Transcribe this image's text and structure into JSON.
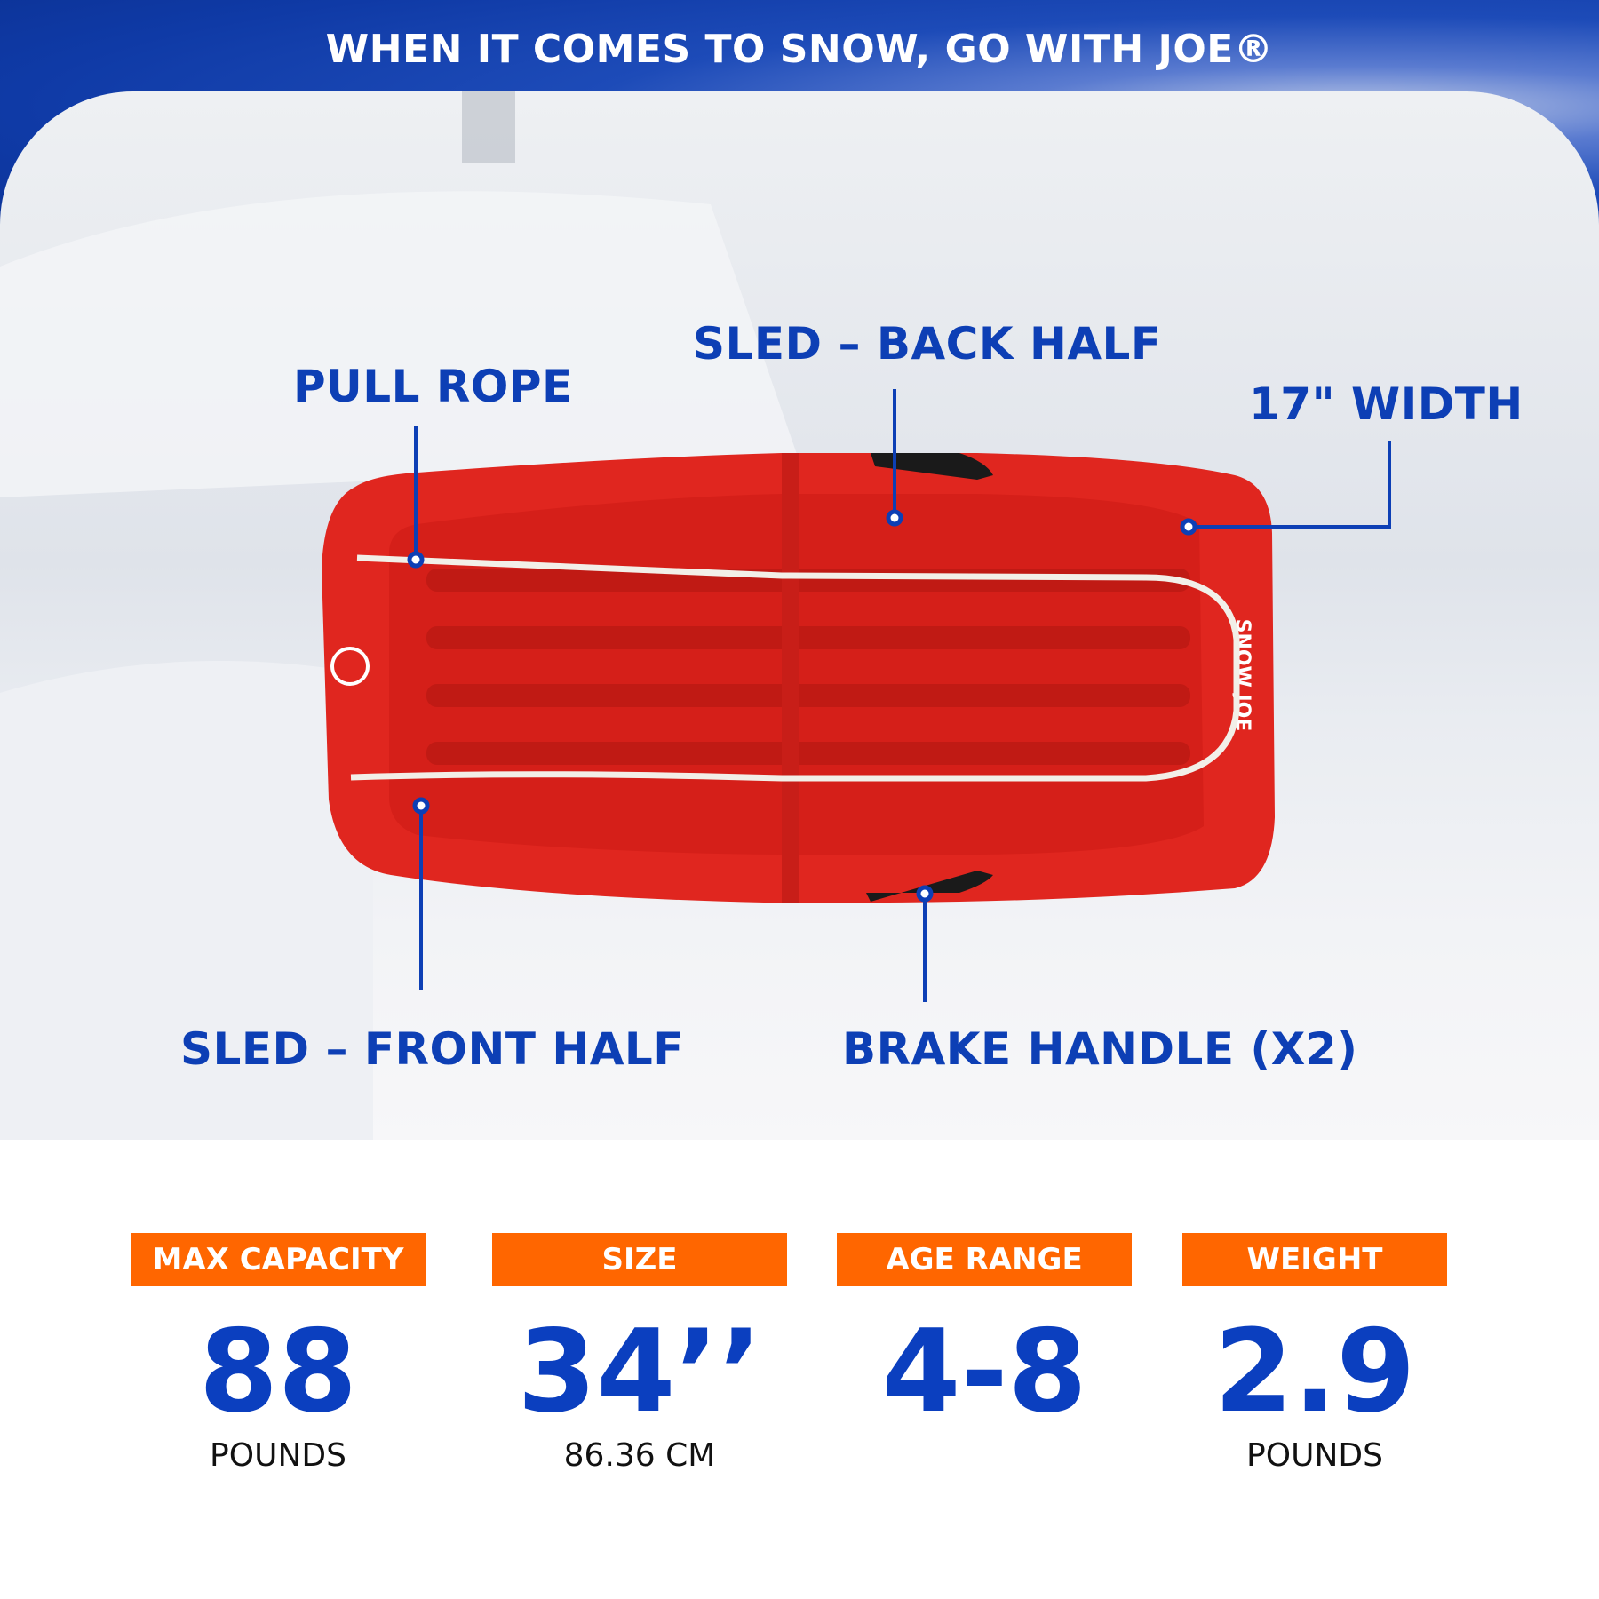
{
  "header": {
    "tagline": "WHEN IT COMES TO SNOW, GO WITH JOE®"
  },
  "callouts": {
    "pull_rope": "PULL ROPE",
    "back_half": "SLED – BACK HALF",
    "width": "17\" WIDTH",
    "front_half": "SLED – FRONT HALF",
    "brake_handle": "BRAKE HANDLE (X2)"
  },
  "sled": {
    "brand_text": "SNOW JOE",
    "color": "#e0261f"
  },
  "stats": [
    {
      "label": "MAX CAPACITY",
      "value": "88",
      "unit": "POUNDS"
    },
    {
      "label": "SIZE",
      "value": "34’’",
      "unit": "86.36 CM"
    },
    {
      "label": "AGE RANGE",
      "value": "4-8",
      "unit": ""
    },
    {
      "label": "WEIGHT",
      "value": "2.9",
      "unit": "POUNDS"
    }
  ],
  "colors": {
    "accent_blue": "#0d3fb5",
    "badge_orange": "#ff6600"
  }
}
